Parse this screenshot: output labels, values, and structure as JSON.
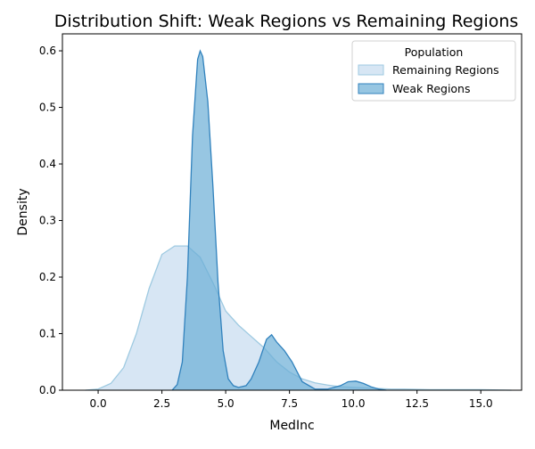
{
  "chart_data": {
    "type": "area",
    "title": "Distribution Shift: Weak Regions vs Remaining Regions",
    "xlabel": "MedInc",
    "ylabel": "Density",
    "xlim": [
      -1.4,
      16.6
    ],
    "ylim": [
      0,
      0.63
    ],
    "xticks": [
      0.0,
      2.5,
      5.0,
      7.5,
      10.0,
      12.5,
      15.0
    ],
    "xtick_labels": [
      "0.0",
      "2.5",
      "5.0",
      "7.5",
      "10.0",
      "12.5",
      "15.0"
    ],
    "yticks": [
      0.0,
      0.1,
      0.2,
      0.3,
      0.4,
      0.5,
      0.6
    ],
    "ytick_labels": [
      "0.0",
      "0.1",
      "0.2",
      "0.3",
      "0.4",
      "0.5",
      "0.6"
    ],
    "grid": false,
    "legend": {
      "title": "Population",
      "placement": "top-right",
      "entries": [
        "Remaining Regions",
        "Weak Regions"
      ]
    },
    "series": [
      {
        "name": "Remaining Regions",
        "fill": "#c6dbef",
        "stroke": "#9ecae1",
        "x": [
          -0.5,
          0.0,
          0.5,
          1.0,
          1.5,
          2.0,
          2.5,
          3.0,
          3.5,
          4.0,
          4.5,
          5.0,
          5.5,
          6.0,
          6.5,
          7.0,
          7.5,
          8.0,
          8.5,
          9.0,
          9.5,
          10.0,
          10.5,
          11.0,
          11.5,
          12.0,
          13.0,
          14.0,
          15.0,
          16.2
        ],
        "y": [
          0.0,
          0.002,
          0.012,
          0.04,
          0.1,
          0.18,
          0.24,
          0.255,
          0.255,
          0.235,
          0.19,
          0.14,
          0.115,
          0.095,
          0.075,
          0.05,
          0.032,
          0.02,
          0.013,
          0.009,
          0.006,
          0.005,
          0.004,
          0.003,
          0.002,
          0.002,
          0.001,
          0.001,
          0.001,
          0.0
        ]
      },
      {
        "name": "Weak Regions",
        "fill": "#6baed6",
        "stroke": "#3182bd",
        "x": [
          2.9,
          3.1,
          3.3,
          3.5,
          3.7,
          3.9,
          4.0,
          4.1,
          4.3,
          4.5,
          4.7,
          4.9,
          5.1,
          5.3,
          5.5,
          5.8,
          6.0,
          6.3,
          6.6,
          6.8,
          7.0,
          7.3,
          7.6,
          8.0,
          8.5,
          9.0,
          9.5,
          9.8,
          10.1,
          10.4,
          10.7,
          11.0,
          11.3
        ],
        "y": [
          0.0,
          0.01,
          0.05,
          0.2,
          0.45,
          0.585,
          0.6,
          0.59,
          0.51,
          0.36,
          0.19,
          0.07,
          0.02,
          0.008,
          0.005,
          0.008,
          0.02,
          0.05,
          0.09,
          0.098,
          0.085,
          0.07,
          0.05,
          0.015,
          0.002,
          0.002,
          0.008,
          0.015,
          0.016,
          0.012,
          0.006,
          0.002,
          0.0
        ]
      }
    ]
  }
}
